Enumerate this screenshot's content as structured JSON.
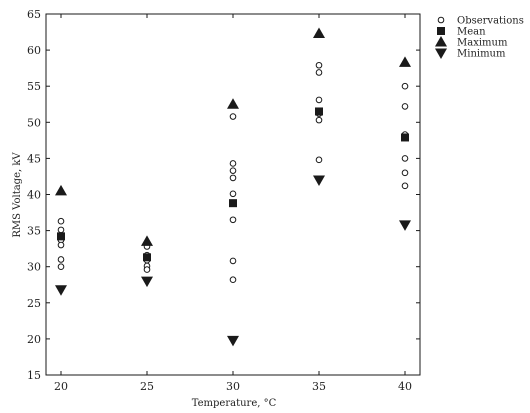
{
  "chart_data": {
    "type": "scatter",
    "xlabel": "Temperature, °C",
    "ylabel": "RMS Voltage, kV",
    "x_categories": [
      20,
      25,
      30,
      35,
      40
    ],
    "ylim": [
      15,
      65
    ],
    "yticks": [
      15,
      20,
      25,
      30,
      35,
      40,
      45,
      50,
      55,
      60,
      65
    ],
    "xtick_labels": [
      "20",
      "25",
      "30",
      "35",
      "40"
    ],
    "ytick_labels": [
      "15",
      "20",
      "25",
      "30",
      "35",
      "40",
      "45",
      "50",
      "55",
      "60",
      "65"
    ],
    "grid": false,
    "legend_position": "top-right",
    "series": [
      {
        "name": "Observations",
        "marker": "open-circle",
        "points": [
          {
            "x": 20,
            "y": 36.3
          },
          {
            "x": 20,
            "y": 35.1
          },
          {
            "x": 20,
            "y": 33.7
          },
          {
            "x": 20,
            "y": 33.0
          },
          {
            "x": 20,
            "y": 31.0
          },
          {
            "x": 20,
            "y": 30.0
          },
          {
            "x": 25,
            "y": 32.8
          },
          {
            "x": 25,
            "y": 31.6
          },
          {
            "x": 25,
            "y": 30.9
          },
          {
            "x": 25,
            "y": 30.1
          },
          {
            "x": 25,
            "y": 29.6
          },
          {
            "x": 30,
            "y": 50.8
          },
          {
            "x": 30,
            "y": 44.3
          },
          {
            "x": 30,
            "y": 43.3
          },
          {
            "x": 30,
            "y": 42.3
          },
          {
            "x": 30,
            "y": 40.1
          },
          {
            "x": 30,
            "y": 36.5
          },
          {
            "x": 30,
            "y": 30.8
          },
          {
            "x": 30,
            "y": 28.2
          },
          {
            "x": 35,
            "y": 57.9
          },
          {
            "x": 35,
            "y": 56.9
          },
          {
            "x": 35,
            "y": 53.1
          },
          {
            "x": 35,
            "y": 51.2
          },
          {
            "x": 35,
            "y": 50.3
          },
          {
            "x": 35,
            "y": 44.8
          },
          {
            "x": 40,
            "y": 55.0
          },
          {
            "x": 40,
            "y": 52.2
          },
          {
            "x": 40,
            "y": 48.3
          },
          {
            "x": 40,
            "y": 45.0
          },
          {
            "x": 40,
            "y": 43.0
          },
          {
            "x": 40,
            "y": 41.2
          }
        ]
      },
      {
        "name": "Mean",
        "marker": "filled-square",
        "points": [
          {
            "x": 20,
            "y": 34.2
          },
          {
            "x": 25,
            "y": 31.3
          },
          {
            "x": 30,
            "y": 38.8
          },
          {
            "x": 35,
            "y": 51.5
          },
          {
            "x": 40,
            "y": 47.9
          }
        ]
      },
      {
        "name": "Maximum",
        "marker": "up-triangle",
        "points": [
          {
            "x": 20,
            "y": 40.5
          },
          {
            "x": 25,
            "y": 33.5
          },
          {
            "x": 30,
            "y": 52.5
          },
          {
            "x": 35,
            "y": 62.3
          },
          {
            "x": 40,
            "y": 58.3
          }
        ]
      },
      {
        "name": "Minimum",
        "marker": "down-triangle",
        "points": [
          {
            "x": 20,
            "y": 26.8
          },
          {
            "x": 25,
            "y": 28.0
          },
          {
            "x": 30,
            "y": 19.8
          },
          {
            "x": 35,
            "y": 42.0
          },
          {
            "x": 40,
            "y": 35.8
          }
        ]
      }
    ]
  },
  "colors": {
    "ink": "#1a1a1a",
    "background": "#ffffff"
  }
}
